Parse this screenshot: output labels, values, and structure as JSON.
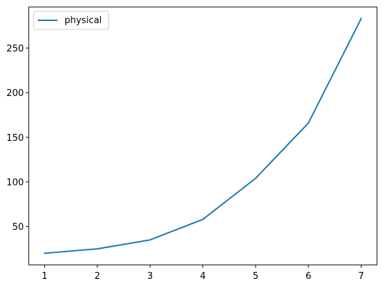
{
  "chart_data": {
    "type": "line",
    "title": "",
    "xlabel": "",
    "ylabel": "",
    "x": [
      1,
      2,
      3,
      4,
      5,
      6,
      7
    ],
    "series": [
      {
        "name": "physical",
        "values": [
          20,
          25,
          35,
          58,
          104,
          166,
          283
        ],
        "color": "#1f77b4"
      }
    ],
    "xlim": [
      0.7,
      7.3
    ],
    "ylim": [
      7,
      296
    ],
    "xticks": [
      1,
      2,
      3,
      4,
      5,
      6,
      7
    ],
    "yticks": [
      50,
      100,
      150,
      200,
      250
    ],
    "grid": false,
    "legend": "top-left"
  }
}
